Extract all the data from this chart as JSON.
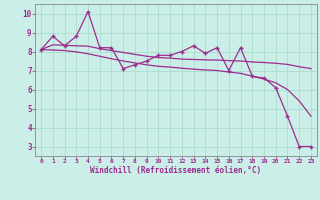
{
  "x": [
    0,
    1,
    2,
    3,
    4,
    5,
    6,
    7,
    8,
    9,
    10,
    11,
    12,
    13,
    14,
    15,
    16,
    17,
    18,
    19,
    20,
    21,
    22,
    23
  ],
  "y_main": [
    8.1,
    8.8,
    8.3,
    8.8,
    10.1,
    8.2,
    8.2,
    7.1,
    7.3,
    7.5,
    7.8,
    7.8,
    8.0,
    8.3,
    7.9,
    8.2,
    7.0,
    8.2,
    6.7,
    6.6,
    6.1,
    4.6,
    3.0,
    3.0
  ],
  "y_trend1": [
    8.1,
    8.35,
    8.33,
    8.3,
    8.28,
    8.15,
    8.05,
    7.95,
    7.85,
    7.75,
    7.68,
    7.65,
    7.6,
    7.58,
    7.56,
    7.55,
    7.52,
    7.5,
    7.45,
    7.42,
    7.38,
    7.32,
    7.2,
    7.1
  ],
  "y_trend2": [
    8.1,
    8.08,
    8.05,
    7.98,
    7.88,
    7.75,
    7.62,
    7.5,
    7.4,
    7.3,
    7.22,
    7.18,
    7.12,
    7.07,
    7.03,
    7.0,
    6.92,
    6.85,
    6.7,
    6.55,
    6.35,
    6.0,
    5.4,
    4.6
  ],
  "color": "#9b2d8e",
  "bg_color": "#cceee8",
  "grid_color": "#aaddcc",
  "xlabel": "Windchill (Refroidissement éolien,°C)",
  "ylim": [
    2.5,
    10.5
  ],
  "xlim": [
    -0.5,
    23.5
  ],
  "yticks": [
    3,
    4,
    5,
    6,
    7,
    8,
    9,
    10
  ],
  "xticks": [
    0,
    1,
    2,
    3,
    4,
    5,
    6,
    7,
    8,
    9,
    10,
    11,
    12,
    13,
    14,
    15,
    16,
    17,
    18,
    19,
    20,
    21,
    22,
    23
  ]
}
